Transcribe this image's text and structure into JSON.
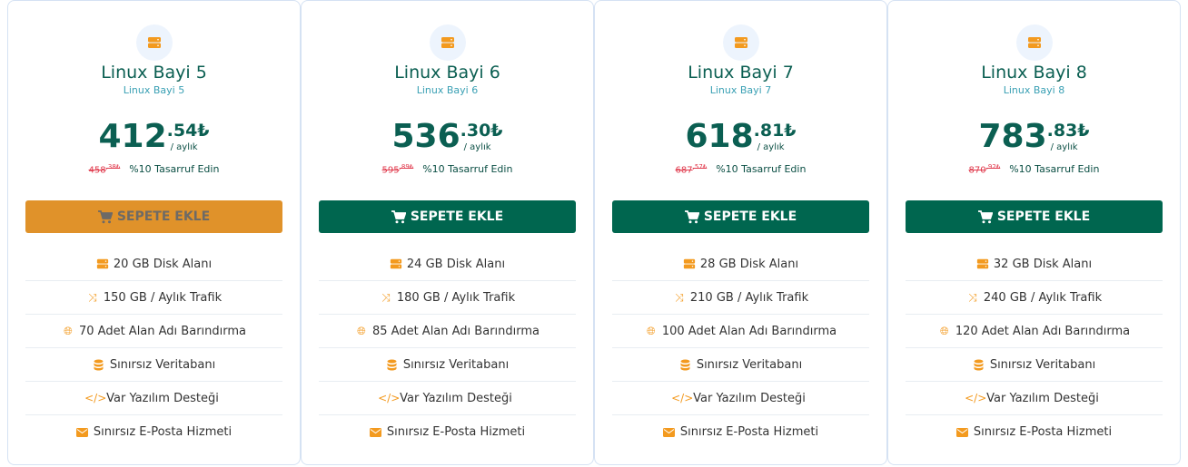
{
  "colors": {
    "primary": "#00664f",
    "accent": "#e0922a",
    "icon": "#f39a1f",
    "old_price": "#e0384b"
  },
  "plans": [
    {
      "title": "Linux Bayi 5",
      "subtitle": "Linux Bayi 5",
      "price_int": "412",
      "price_dec": ".54₺",
      "period": "/ aylık",
      "old_int": "458",
      "old_dec": ",38₺",
      "save": "%10 Tasarruf Edin",
      "button": "SEPETE EKLE",
      "button_state": "hover",
      "features": [
        "20 GB Disk Alanı",
        "150 GB / Aylık Trafik",
        "70 Adet Alan Adı Barındırma",
        "Sınırsız Veritabanı",
        "Var Yazılım Desteği",
        "Sınırsız E-Posta Hizmeti"
      ]
    },
    {
      "title": "Linux Bayi 6",
      "subtitle": "Linux Bayi 6",
      "price_int": "536",
      "price_dec": ".30₺",
      "period": "/ aylık",
      "old_int": "595",
      "old_dec": ",89₺",
      "save": "%10 Tasarruf Edin",
      "button": "SEPETE EKLE",
      "button_state": "normal",
      "features": [
        "24 GB Disk Alanı",
        "180 GB / Aylık Trafik",
        "85 Adet Alan Adı Barındırma",
        "Sınırsız Veritabanı",
        "Var Yazılım Desteği",
        "Sınırsız E-Posta Hizmeti"
      ]
    },
    {
      "title": "Linux Bayi 7",
      "subtitle": "Linux Bayi 7",
      "price_int": "618",
      "price_dec": ".81₺",
      "period": "/ aylık",
      "old_int": "687",
      "old_dec": ",57₺",
      "save": "%10 Tasarruf Edin",
      "button": "SEPETE EKLE",
      "button_state": "normal",
      "features": [
        "28 GB Disk Alanı",
        "210 GB / Aylık Trafik",
        "100 Adet Alan Adı Barındırma",
        "Sınırsız Veritabanı",
        "Var Yazılım Desteği",
        "Sınırsız E-Posta Hizmeti"
      ]
    },
    {
      "title": "Linux Bayi 8",
      "subtitle": "Linux Bayi 8",
      "price_int": "783",
      "price_dec": ".83₺",
      "period": "/ aylık",
      "old_int": "870",
      "old_dec": ",92₺",
      "save": "%10 Tasarruf Edin",
      "button": "SEPETE EKLE",
      "button_state": "normal",
      "features": [
        "32 GB Disk Alanı",
        "240 GB / Aylık Trafik",
        "120 Adet Alan Adı Barındırma",
        "Sınırsız Veritabanı",
        "Var Yazılım Desteği",
        "Sınırsız E-Posta Hizmeti"
      ]
    }
  ],
  "feature_icons": [
    "hdd-icon",
    "shuffle-icon",
    "globe-icon",
    "database-icon",
    "code-icon",
    "envelope-icon"
  ]
}
